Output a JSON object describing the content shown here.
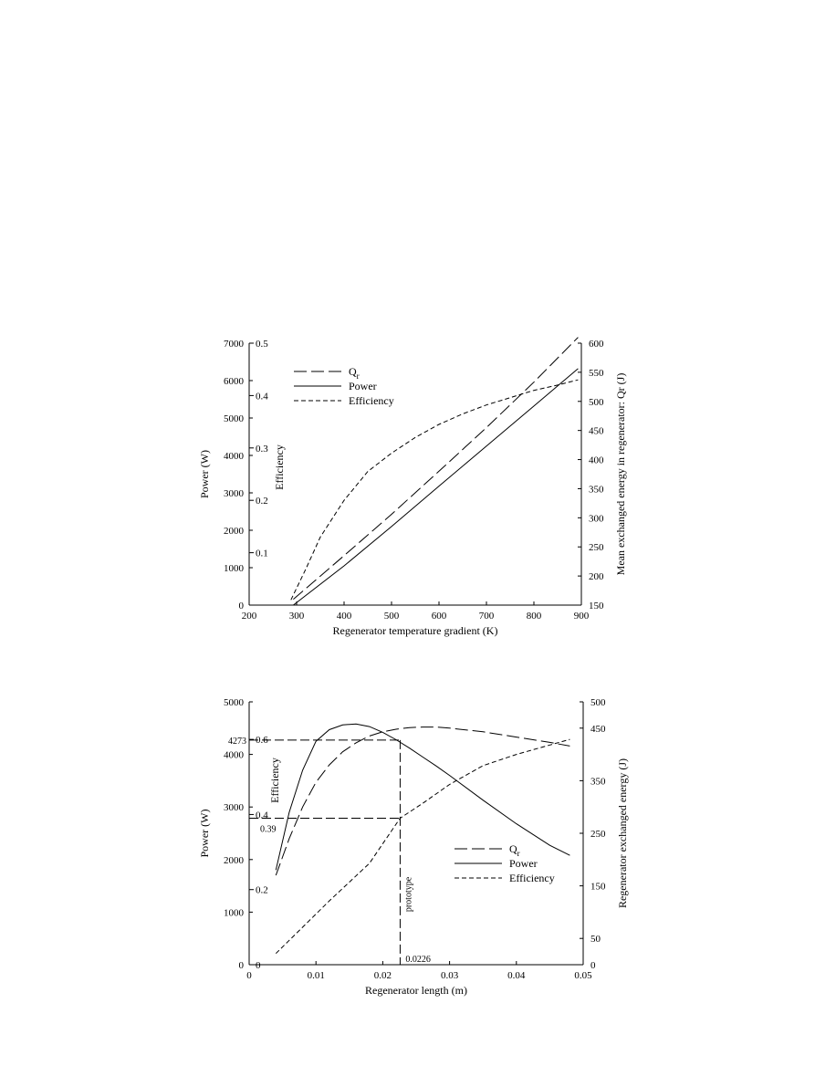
{
  "chart_data": [
    {
      "type": "line",
      "xlabel": "Regenerator temperature gradient (K)",
      "ylabel": "Power (W)",
      "y2label": "Efficiency",
      "y3label": "Mean exchanged energy in regenerator: Qr (J)",
      "xlim": [
        200,
        900
      ],
      "ylim": [
        0,
        7000
      ],
      "y2lim": [
        0,
        0.5
      ],
      "y3lim": [
        150,
        600
      ],
      "x_ticks": [
        "200",
        "300",
        "400",
        "500",
        "600",
        "700",
        "800",
        "900"
      ],
      "y_ticks": [
        "0",
        "1000",
        "2000",
        "3000",
        "4000",
        "5000",
        "6000",
        "7000"
      ],
      "y2_ticks": [
        "0.1",
        "0.2",
        "0.3",
        "0.4",
        "0.5"
      ],
      "y3_ticks": [
        "150",
        "200",
        "250",
        "300",
        "350",
        "400",
        "450",
        "500",
        "550",
        "600"
      ],
      "legend": [
        "Qr",
        "Power",
        "Efficiency"
      ],
      "legend_position": "top-left",
      "grid": false,
      "series": [
        {
          "name": "Qr",
          "axis": "y3",
          "style": "longdash",
          "x": [
            293,
            400,
            500,
            600,
            700,
            800,
            893
          ],
          "y": [
            160,
            235,
            306,
            380,
            455,
            533,
            610
          ]
        },
        {
          "name": "Power",
          "axis": "y",
          "style": "solid",
          "x": [
            293,
            400,
            500,
            600,
            700,
            800,
            893
          ],
          "y": [
            0,
            1050,
            2100,
            3180,
            4250,
            5320,
            6320
          ]
        },
        {
          "name": "Efficiency",
          "axis": "y2",
          "style": "shortdash",
          "x": [
            288,
            320,
            350,
            400,
            450,
            500,
            550,
            600,
            650,
            700,
            750,
            800,
            850,
            893
          ],
          "y": [
            0.01,
            0.07,
            0.13,
            0.2,
            0.255,
            0.29,
            0.32,
            0.345,
            0.365,
            0.382,
            0.396,
            0.41,
            0.42,
            0.43
          ]
        }
      ]
    },
    {
      "type": "line",
      "xlabel": "Regenerator length (m)",
      "ylabel": "Power (W)",
      "y2label": "Efficiency",
      "y3label": "Regenerator exchanged energy (J)",
      "xlim": [
        0,
        0.05
      ],
      "ylim": [
        0,
        5000
      ],
      "y2lim": [
        0,
        0.7
      ],
      "y3lim": [
        0,
        500
      ],
      "x_ticks": [
        "0",
        "0.01",
        "0.02",
        "0.03",
        "0.04",
        "0.05"
      ],
      "y_ticks": [
        "0",
        "1000",
        "2000",
        "3000",
        "4000",
        "5000"
      ],
      "y2_ticks": [
        "0",
        "0.2",
        "0.4",
        "0.6"
      ],
      "y3_ticks": [
        "0",
        "50",
        "150",
        "250",
        "350",
        "450",
        "500"
      ],
      "legend": [
        "Qr",
        "Power",
        "Efficiency"
      ],
      "legend_position": "bottom-right",
      "grid": false,
      "annotations": {
        "power_marker": "4273",
        "efficiency_marker": "0.39",
        "length_marker": "0.0226",
        "vertical_label": "prototype"
      },
      "marker_values": {
        "x": 0.0226,
        "power": 4273,
        "efficiency": 0.39
      },
      "series": [
        {
          "name": "Qr",
          "axis": "y3",
          "style": "longdash",
          "x": [
            0.004,
            0.006,
            0.008,
            0.01,
            0.012,
            0.014,
            0.016,
            0.018,
            0.02,
            0.022,
            0.024,
            0.026,
            0.028,
            0.03,
            0.035,
            0.04,
            0.045,
            0.048
          ],
          "y": [
            170,
            240,
            300,
            347,
            380,
            405,
            422,
            435,
            443,
            448,
            451,
            452,
            452,
            450,
            443,
            433,
            423,
            416
          ]
        },
        {
          "name": "Power",
          "axis": "y",
          "style": "solid",
          "x": [
            0.004,
            0.006,
            0.008,
            0.01,
            0.012,
            0.014,
            0.016,
            0.018,
            0.02,
            0.022,
            0.024,
            0.026,
            0.028,
            0.03,
            0.035,
            0.04,
            0.045,
            0.048
          ],
          "y": [
            1800,
            2900,
            3700,
            4250,
            4470,
            4560,
            4580,
            4530,
            4420,
            4280,
            4120,
            3950,
            3780,
            3600,
            3130,
            2680,
            2270,
            2080
          ]
        },
        {
          "name": "Efficiency",
          "axis": "y2",
          "style": "shortdash",
          "x": [
            0.004,
            0.006,
            0.008,
            0.01,
            0.012,
            0.015,
            0.018,
            0.0226,
            0.026,
            0.03,
            0.035,
            0.04,
            0.045,
            0.048
          ],
          "y": [
            0.03,
            0.065,
            0.1,
            0.135,
            0.17,
            0.22,
            0.27,
            0.39,
            0.43,
            0.48,
            0.53,
            0.56,
            0.585,
            0.6
          ]
        }
      ]
    }
  ]
}
